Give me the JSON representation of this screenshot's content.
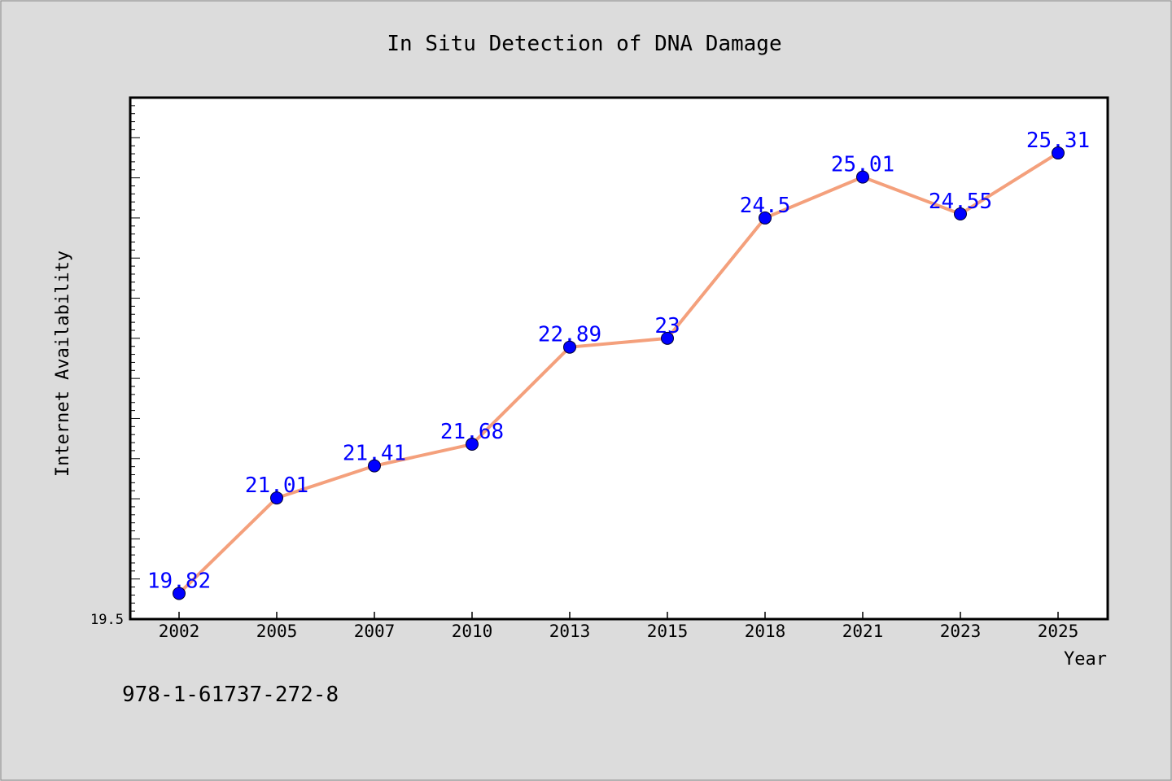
{
  "chart_data": {
    "type": "line",
    "title": "In Situ Detection of DNA Damage",
    "xlabel": "Year",
    "ylabel": "Internet Availability",
    "categories": [
      "2002",
      "2005",
      "2007",
      "2010",
      "2013",
      "2015",
      "2018",
      "2021",
      "2023",
      "2025"
    ],
    "series": [
      {
        "values": [
          19.82,
          21.01,
          21.41,
          21.68,
          22.89,
          23,
          24.5,
          25.01,
          24.55,
          25.31
        ],
        "labels": [
          "19.82",
          "21.01",
          "21.41",
          "21.68",
          "22.89",
          "23",
          "24.5",
          "25.01",
          "24.55",
          "25.31"
        ],
        "line_color": "#f4a07c",
        "marker_color": "#0000ff"
      }
    ],
    "ylim": [
      19.5,
      26.0
    ],
    "y_min_label": "19.5",
    "grid": false,
    "legend": "none"
  },
  "footnote": "978-1-61737-272-8"
}
